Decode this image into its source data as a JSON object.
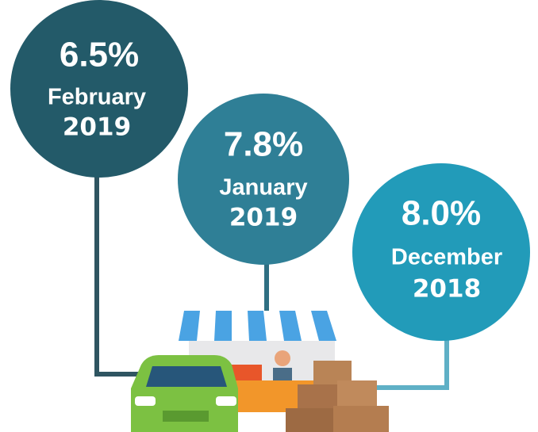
{
  "items": [
    {
      "rate": "6.5%",
      "month": "February",
      "year": "2019"
    },
    {
      "rate": "7.8%",
      "month": "January",
      "year": "2019"
    },
    {
      "rate": "8.0%",
      "month": "December",
      "year": "2018"
    }
  ]
}
